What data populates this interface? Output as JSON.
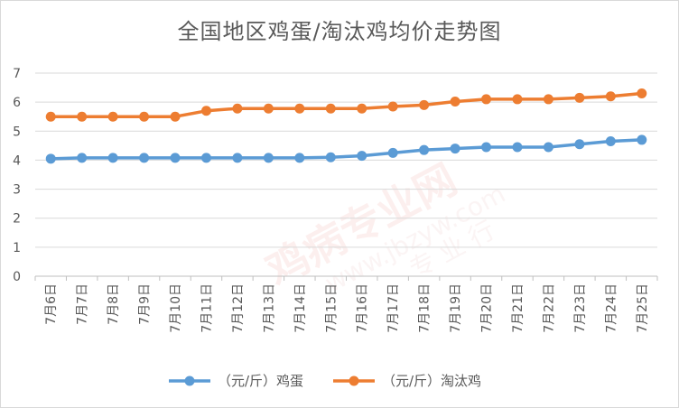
{
  "chart_data": {
    "type": "line",
    "title": "全国地区鸡蛋/淘汰鸡均价走势图",
    "categories": [
      "7月6日",
      "7月7日",
      "7月8日",
      "7月9日",
      "7月10日",
      "7月11日",
      "7月12日",
      "7月13日",
      "7月14日",
      "7月15日",
      "7月16日",
      "7月17日",
      "7月18日",
      "7月19日",
      "7月20日",
      "7月21日",
      "7月22日",
      "7月23日",
      "7月24日",
      "7月25日"
    ],
    "series": [
      {
        "name": "（元/斤）鸡蛋",
        "color": "#5b9bd5",
        "values": [
          4.05,
          4.08,
          4.08,
          4.08,
          4.08,
          4.08,
          4.08,
          4.08,
          4.08,
          4.1,
          4.15,
          4.25,
          4.35,
          4.4,
          4.45,
          4.45,
          4.45,
          4.55,
          4.65,
          4.7
        ]
      },
      {
        "name": "（元/斤）淘汰鸡",
        "color": "#ed7d31",
        "values": [
          5.5,
          5.5,
          5.5,
          5.5,
          5.5,
          5.7,
          5.78,
          5.78,
          5.78,
          5.78,
          5.78,
          5.85,
          5.9,
          6.02,
          6.1,
          6.1,
          6.1,
          6.15,
          6.2,
          6.3
        ]
      }
    ],
    "ylim": [
      0,
      7
    ],
    "yticks": [
      "0",
      "1",
      "2",
      "3",
      "4",
      "5",
      "6",
      "7"
    ],
    "xlabel": "",
    "ylabel": "",
    "grid": true,
    "legend": "bottom"
  },
  "watermark": {
    "text": "鸡病专业网",
    "url": "www.jbzyw.com",
    "sub": "专 业 行"
  }
}
